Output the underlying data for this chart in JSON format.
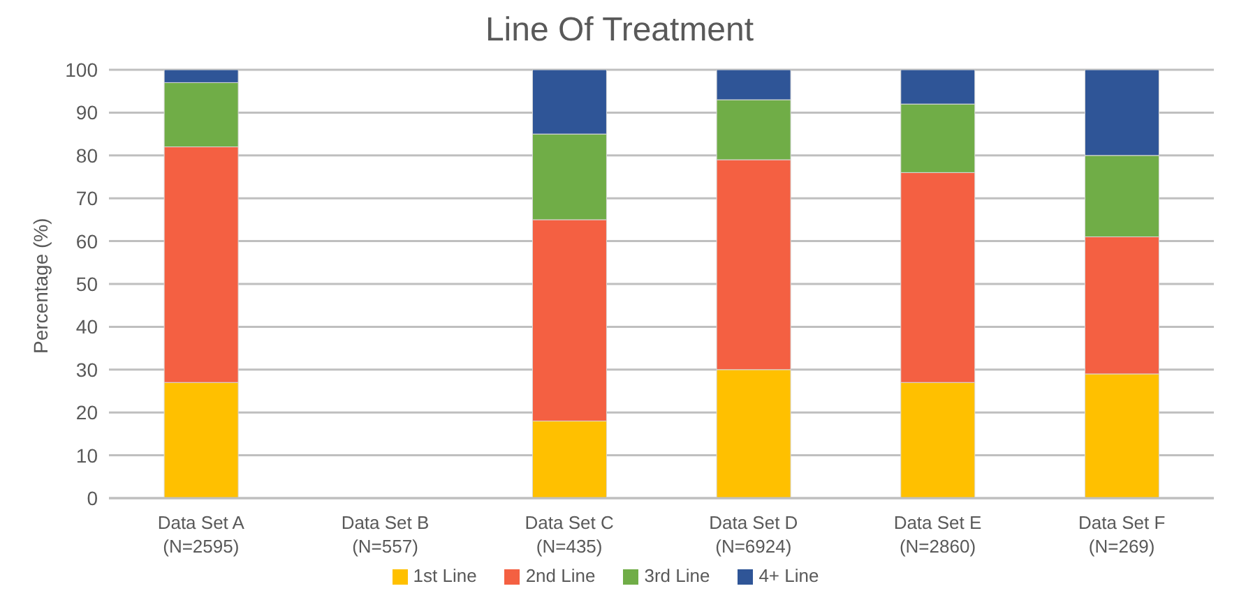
{
  "chart_data": {
    "type": "bar",
    "title": "Line Of Treatment",
    "ylabel": "Percentage (%)",
    "categories": [
      "Data Set A\n(N=2595)",
      "Data Set B\n(N=557)",
      "Data Set C\n(N=435)",
      "Data Set D\n(N=6924)",
      "Data Set E\n(N=2860)",
      "Data Set F\n(N=269)"
    ],
    "series": [
      {
        "name": "1st Line",
        "color": "#ffc000",
        "values": [
          27,
          null,
          18,
          30,
          27,
          29
        ]
      },
      {
        "name": "2nd Line",
        "color": "#f46042",
        "values": [
          55,
          null,
          47,
          49,
          49,
          32
        ]
      },
      {
        "name": "3rd Line",
        "color": "#70ad47",
        "values": [
          15,
          null,
          20,
          14,
          16,
          19
        ]
      },
      {
        "name": "4+ Line",
        "color": "#2f5597",
        "values": [
          3,
          null,
          15,
          7,
          8,
          20
        ]
      }
    ],
    "stacked": true,
    "ylim": [
      0,
      100
    ],
    "yticks": [
      0,
      10,
      20,
      30,
      40,
      50,
      60,
      70,
      80,
      90,
      100
    ],
    "grid": "y",
    "legend": "bottom"
  }
}
